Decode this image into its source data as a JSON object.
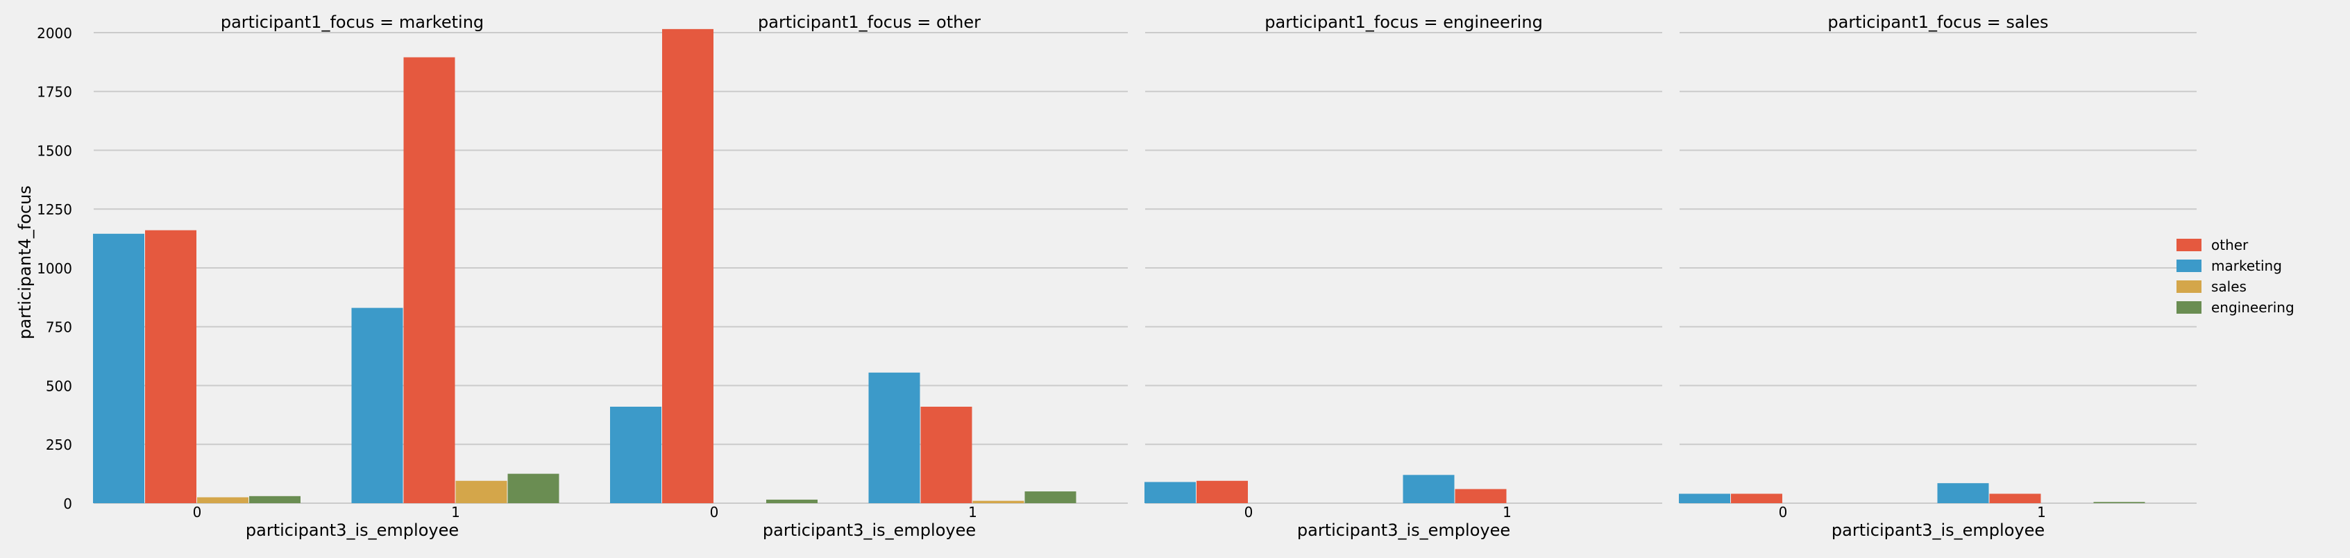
{
  "chart_data": {
    "type": "bar",
    "y_label": "participant4_focus",
    "x_label": "participant3_is_employee",
    "y_lim": [
      0,
      2050
    ],
    "y_ticks": [
      0,
      250,
      500,
      750,
      1000,
      1250,
      1500,
      1750,
      2000
    ],
    "categories": [
      "0",
      "1"
    ],
    "grid": "horizontal",
    "legend_position": "right",
    "legend": [
      {
        "name": "other",
        "color": "#e5593f"
      },
      {
        "name": "marketing",
        "color": "#3c9ac9"
      },
      {
        "name": "sales",
        "color": "#d4a64a"
      },
      {
        "name": "engineering",
        "color": "#6a8d52"
      }
    ],
    "panels": [
      {
        "title": "participant1_focus = marketing",
        "series": [
          {
            "name": "marketing",
            "values": [
              1145,
              830
            ]
          },
          {
            "name": "other",
            "values": [
              1160,
              1895
            ]
          },
          {
            "name": "sales",
            "values": [
              25,
              95
            ]
          },
          {
            "name": "engineering",
            "values": [
              30,
              125
            ]
          }
        ]
      },
      {
        "title": "participant1_focus = other",
        "series": [
          {
            "name": "marketing",
            "values": [
              410,
              555
            ]
          },
          {
            "name": "other",
            "values": [
              2015,
              410
            ]
          },
          {
            "name": "sales",
            "values": [
              0,
              10
            ]
          },
          {
            "name": "engineering",
            "values": [
              15,
              50
            ]
          }
        ]
      },
      {
        "title": "participant1_focus = engineering",
        "series": [
          {
            "name": "marketing",
            "values": [
              90,
              120
            ]
          },
          {
            "name": "other",
            "values": [
              95,
              60
            ]
          },
          {
            "name": "sales",
            "values": [
              0,
              0
            ]
          },
          {
            "name": "engineering",
            "values": [
              0,
              0
            ]
          }
        ]
      },
      {
        "title": "participant1_focus = sales",
        "series": [
          {
            "name": "marketing",
            "values": [
              40,
              85
            ]
          },
          {
            "name": "other",
            "values": [
              40,
              40
            ]
          },
          {
            "name": "sales",
            "values": [
              0,
              0
            ]
          },
          {
            "name": "engineering",
            "values": [
              0,
              5
            ]
          }
        ]
      }
    ]
  }
}
